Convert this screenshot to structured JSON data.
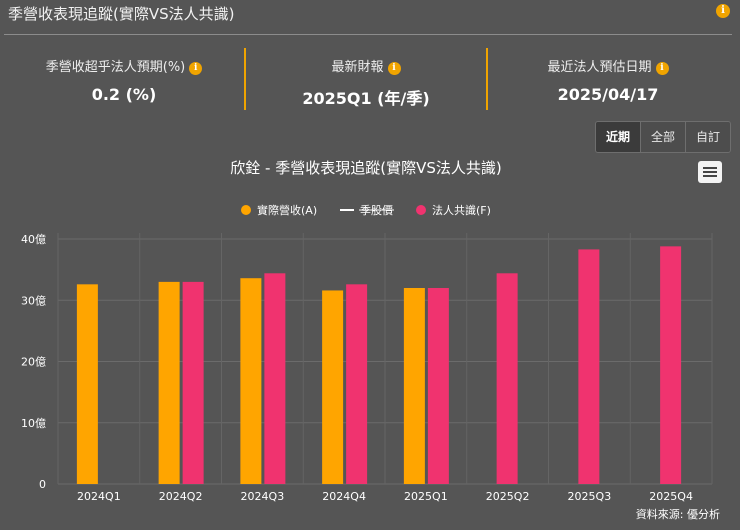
{
  "header": {
    "title": "季營收表現追蹤(實際VS法人共識)"
  },
  "stats": [
    {
      "label": "季營收超乎法人預期(%)",
      "value": "0.2 (%)"
    },
    {
      "label": "最新財報",
      "value": "2025Q1 (年/季)"
    },
    {
      "label": "最近法人預估日期",
      "value": "2025/04/17"
    }
  ],
  "buttons": {
    "recent": "近期",
    "all": "全部",
    "custom": "自訂"
  },
  "source": "資料來源: 優分析",
  "colors": {
    "actual": "#FFA500",
    "eps_line": "#ffffff",
    "forecast": "#F0336F",
    "accent": "#f0a400"
  },
  "chart_data": {
    "type": "bar",
    "title": "欣銓 - 季營收表現追蹤(實際VS法人共識)",
    "categories": [
      "2024Q1",
      "2024Q2",
      "2024Q3",
      "2024Q4",
      "2025Q1",
      "2025Q2",
      "2025Q3",
      "2025Q4"
    ],
    "series": [
      {
        "name": "實際營收(A)",
        "type": "bar",
        "values": [
          32.6,
          33.0,
          33.6,
          31.6,
          32.0,
          null,
          null,
          null
        ]
      },
      {
        "name": "季股價",
        "type": "line",
        "values": [
          null,
          null,
          null,
          null,
          null,
          null,
          null,
          null
        ]
      },
      {
        "name": "法人共識(F)",
        "type": "bar",
        "values": [
          null,
          33.0,
          34.4,
          32.6,
          32.0,
          34.4,
          38.3,
          38.8
        ]
      }
    ],
    "ylim": [
      0,
      40
    ],
    "yticks": [
      "0",
      "10億",
      "20億",
      "30億",
      "40億"
    ],
    "ytick_values": [
      0,
      10,
      20,
      30,
      40
    ],
    "grid": true,
    "legend": "top-center"
  }
}
